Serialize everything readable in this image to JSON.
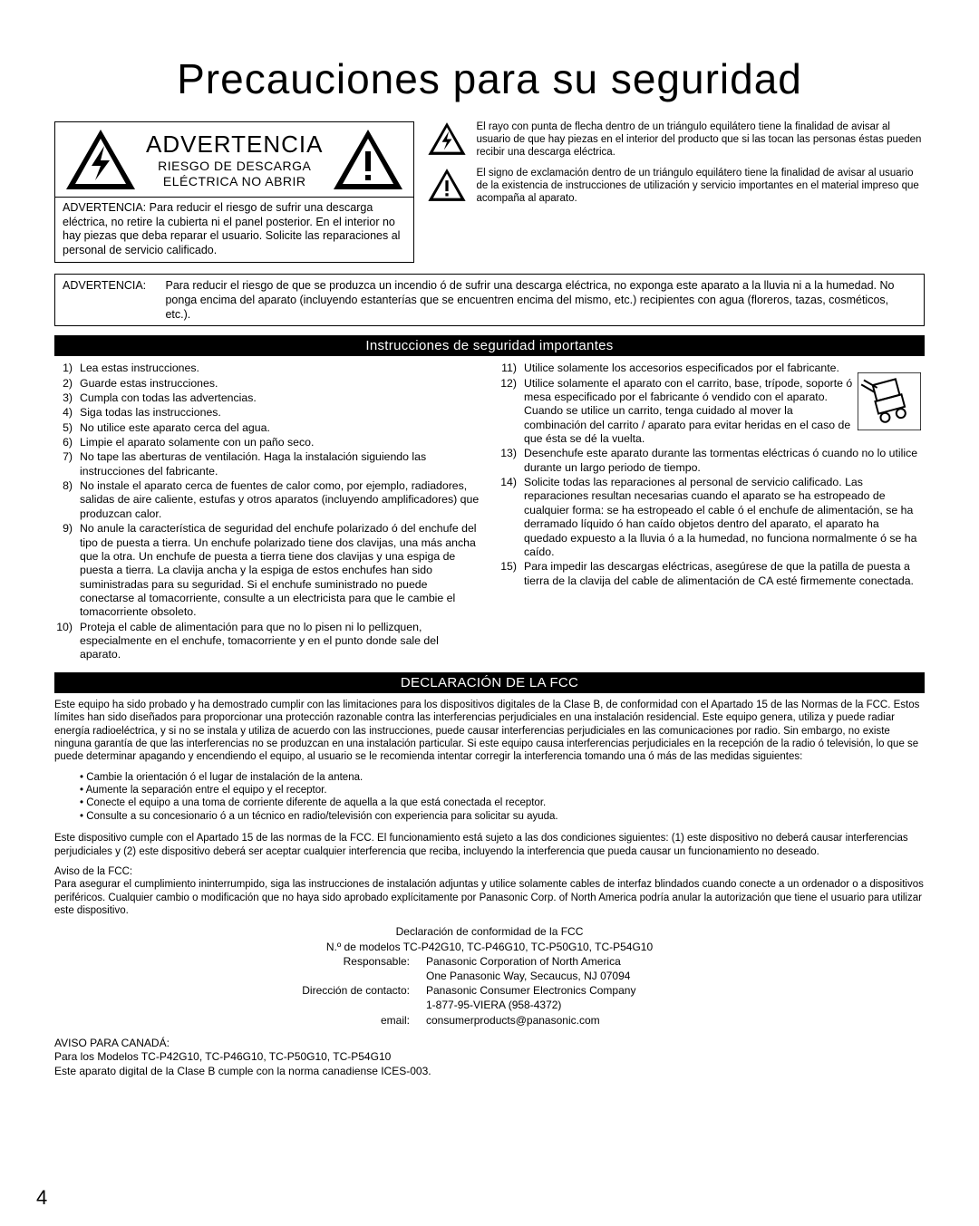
{
  "title": "Precauciones para su seguridad",
  "warning_box": {
    "advertencia": "ADVERTENCIA",
    "riesgo": "RIESGO DE DESCARGA ELÉCTRICA NO ABRIR",
    "note": "ADVERTENCIA: Para reducir el riesgo de sufrir una descarga eléctrica, no retire la cubierta ni el panel posterior. En el interior no hay piezas que deba reparar el usuario. Solicite las reparaciones al personal de servicio calificado."
  },
  "legend": {
    "bolt": "El rayo con punta de flecha dentro de un triángulo equilátero tiene la finalidad de avisar al usuario de que hay piezas en el interior del producto que si las tocan las personas éstas pueden recibir una descarga eléctrica.",
    "excl": "El signo de exclamación dentro de un triángulo equilátero tiene la finalidad de avisar al usuario de la existencia de instrucciones de utilización y servicio importantes en el material impreso que acompaña al aparato."
  },
  "main_warning": {
    "label": "ADVERTENCIA:",
    "text": "Para reducir el riesgo de que se produzca un incendio ó de sufrir una descarga eléctrica, no exponga este aparato a la lluvia ni a la humedad. No ponga encima del aparato (incluyendo estanterías que se encuentren encima del mismo, etc.) recipientes con agua (floreros, tazas, cosméticos, etc.)."
  },
  "section_instructions": "Instrucciones de seguridad importantes",
  "instructions_left": [
    "Lea estas instrucciones.",
    "Guarde estas instrucciones.",
    "Cumpla con todas las advertencias.",
    "Siga todas las instrucciones.",
    "No utilice este aparato cerca del agua.",
    "Limpie el aparato solamente con un paño seco.",
    "No tape las aberturas de ventilación. Haga la instalación siguiendo las instrucciones del fabricante.",
    "No instale el aparato cerca de fuentes de calor como, por ejemplo, radiadores, salidas de aire caliente, estufas y otros aparatos (incluyendo amplificadores) que produzcan calor.",
    "No anule la característica de seguridad del enchufe polarizado ó del enchufe del tipo de puesta a tierra. Un enchufe polarizado tiene dos clavijas, una más ancha que la otra. Un enchufe de puesta a tierra tiene dos clavijas y una espiga de puesta a tierra. La clavija ancha y la espiga de estos enchufes han sido suministradas para su seguridad. Si el enchufe suministrado no puede conectarse al tomacorriente, consulte a un electricista para que le cambie el tomacorriente obsoleto.",
    "Proteja el cable de alimentación para que no lo pisen ni lo pellizquen, especialmente en el enchufe, tomacorriente y en el punto donde sale del aparato."
  ],
  "instructions_right": [
    "Utilice solamente los accesorios especificados por el fabricante.",
    "Utilice solamente el aparato con el carrito, base, trípode, soporte ó mesa especificado por el fabricante ó vendido con el aparato. Cuando se utilice un carrito, tenga cuidado al mover la combinación del carrito / aparato para evitar heridas en el caso de que ésta se dé la vuelta.",
    "Desenchufe este aparato durante las tormentas eléctricas ó cuando no lo utilice durante un largo periodo de tiempo.",
    "Solicite todas las reparaciones al personal de servicio calificado. Las reparaciones resultan necesarias cuando el aparato se ha estropeado de cualquier forma:  se ha estropeado el cable ó el enchufe de alimentación, se ha derramado líquido ó han caído objetos dentro del aparato, el aparato ha quedado expuesto a la lluvia ó a la humedad, no funciona normalmente ó se ha caído.",
    "Para impedir las descargas eléctricas, asegúrese de que la patilla de puesta a tierra de la clavija del cable de alimentación de CA esté firmemente conectada."
  ],
  "section_fcc": "DECLARACIÓN DE LA FCC",
  "fcc": {
    "p1": "Este equipo ha sido probado y ha demostrado cumplir con las limitaciones para los dispositivos digitales de la Clase B, de conformidad con el Apartado 15 de las Normas de la FCC. Estos límites han sido diseñados para proporcionar una protección razonable contra las interferencias perjudiciales en una instalación residencial. Este equipo genera, utiliza y puede radiar energía radioeléctrica, y si no se instala y utiliza de acuerdo con las instrucciones, puede causar interferencias perjudiciales en las comunicaciones por radio. Sin embargo, no existe ninguna garantía de que las interferencias no se produzcan en una instalación particular. Si este equipo causa interferencias perjudiciales en la recepción de la radio ó televisión, lo que se puede determinar apagando y encendiendo el equipo, al usuario se le recomienda intentar corregir la interferencia tomando una ó más de las medidas siguientes:",
    "bullets": [
      "Cambie la orientación ó el lugar de instalación de la antena.",
      "Aumente la separación entre el equipo y el receptor.",
      "Conecte el equipo a una toma de corriente diferente de aquella a la que está conectada el receptor.",
      "Consulte a su concesionario ó a un técnico en radio/televisión con experiencia para solicitar su ayuda."
    ],
    "p2": "Este dispositivo cumple con el Apartado 15 de las normas de la FCC. El funcionamiento está sujeto a las dos condiciones siguientes: (1) este dispositivo no deberá causar interferencias perjudiciales y (2) este dispositivo deberá ser aceptar cualquier interferencia que reciba, incluyendo la interferencia que pueda causar un funcionamiento no deseado.",
    "notice_label": "Aviso de la FCC:",
    "p3": "Para asegurar el cumplimiento ininterrumpido, siga las instrucciones de instalación adjuntas y utilice solamente cables de interfaz blindados cuando conecte a un ordenador o a dispositivos periféricos. Cualquier cambio o modificación que no haya sido aprobado explícitamente por Panasonic Corp. of North America podría anular la autorización que tiene el usuario para utilizar este dispositivo."
  },
  "conformity": {
    "title": "Declaración de conformidad de la FCC",
    "models": "N.º de modelos TC-P42G10, TC-P46G10, TC-P50G10, TC-P54G10",
    "rows": [
      {
        "label": "Responsable:",
        "value": "Panasonic Corporation of North America"
      },
      {
        "label": "",
        "value": "One Panasonic Way, Secaucus, NJ 07094"
      },
      {
        "label": "Dirección de contacto:",
        "value": "Panasonic Consumer Electronics Company"
      },
      {
        "label": "",
        "value": "1-877-95-VIERA (958-4372)"
      },
      {
        "label": "email:",
        "value": "consumerproducts@panasonic.com"
      }
    ]
  },
  "canada": {
    "title": "AVISO PARA CANADÁ:",
    "models": "Para los Modelos TC-P42G10, TC-P46G10, TC-P50G10, TC-P54G10",
    "text": "Este aparato digital de la Clase B cumple con la norma canadiense ICES-003."
  },
  "page_number": "4",
  "colors": {
    "bg": "#ffffff",
    "text": "#000000",
    "bar_bg": "#000000",
    "bar_fg": "#ffffff"
  }
}
